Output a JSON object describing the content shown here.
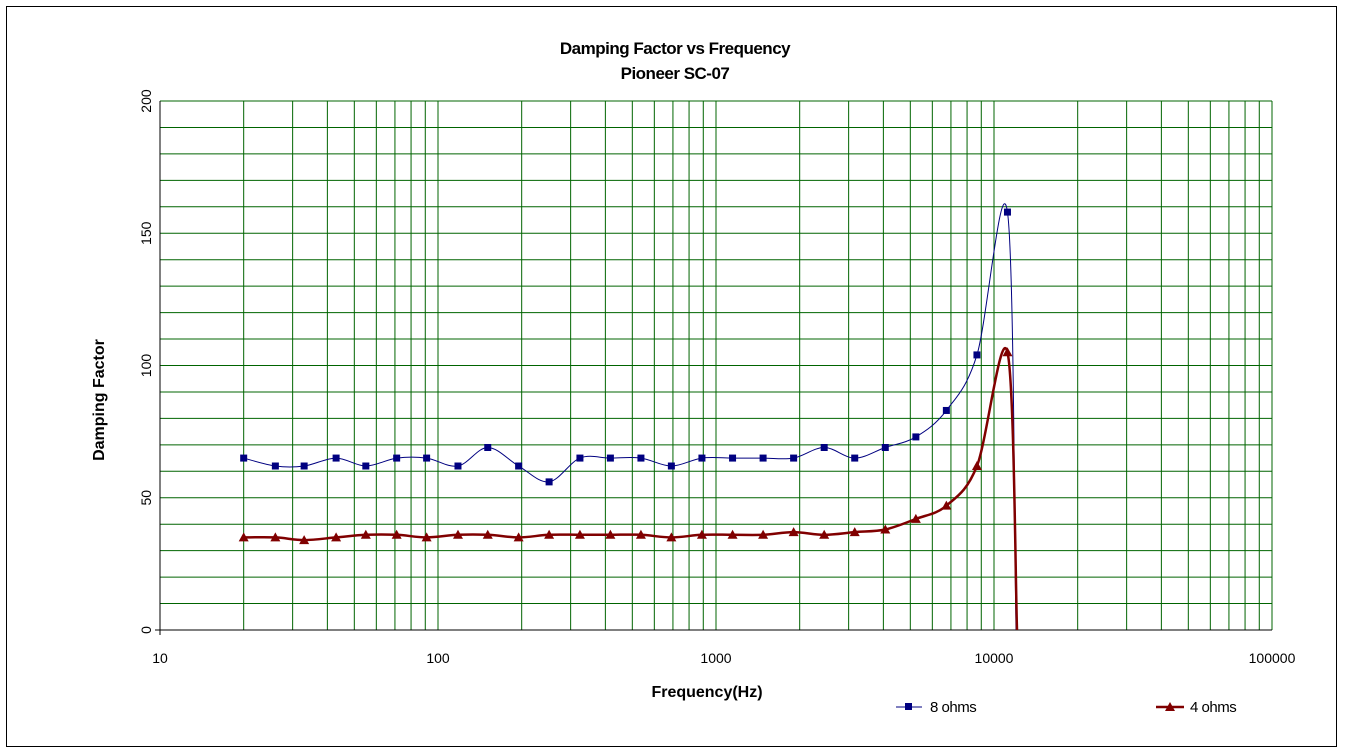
{
  "chart_data": {
    "type": "line",
    "title": "Damping Factor  vs Frequency",
    "subtitle": "Pioneer SC-07",
    "xlabel": "Frequency(Hz)",
    "ylabel": "Damping Factor",
    "xscale": "log",
    "xlim": [
      10,
      100000
    ],
    "ylim": [
      0,
      200
    ],
    "x_ticks": [
      "10",
      "100",
      "1000",
      "10000",
      "100000"
    ],
    "y_ticks": [
      "0",
      "50",
      "100",
      "150",
      "200"
    ],
    "y_tick_values": [
      0,
      50,
      100,
      150,
      200
    ],
    "x_tick_values": [
      10,
      100,
      1000,
      10000,
      100000
    ],
    "grid": true,
    "legend_position": "bottom",
    "series": [
      {
        "name": "8 ohms",
        "color": "#000080",
        "marker": "square",
        "x": [
          20,
          26,
          33,
          43,
          55,
          71,
          91,
          118,
          151,
          195,
          251,
          324,
          417,
          537,
          691,
          890,
          1147,
          1477,
          1902,
          2450,
          3155,
          4064,
          5235,
          6740,
          8683,
          11180,
          12000
        ],
        "values": [
          65,
          62,
          62,
          65,
          62,
          65,
          65,
          62,
          69,
          62,
          56,
          65,
          65,
          65,
          62,
          65,
          65,
          65,
          65,
          69,
          65,
          69,
          73,
          83,
          104,
          158,
          0
        ]
      },
      {
        "name": "4 ohms",
        "color": "#800000",
        "marker": "triangle",
        "x": [
          20,
          26,
          33,
          43,
          55,
          71,
          91,
          118,
          151,
          195,
          251,
          324,
          417,
          537,
          691,
          890,
          1147,
          1477,
          1902,
          2450,
          3155,
          4064,
          5235,
          6740,
          8683,
          11180,
          12100
        ],
        "values": [
          35,
          35,
          34,
          35,
          36,
          36,
          35,
          36,
          36,
          35,
          36,
          36,
          36,
          36,
          35,
          36,
          36,
          36,
          37,
          36,
          37,
          38,
          42,
          47,
          62,
          105,
          0
        ]
      }
    ]
  }
}
